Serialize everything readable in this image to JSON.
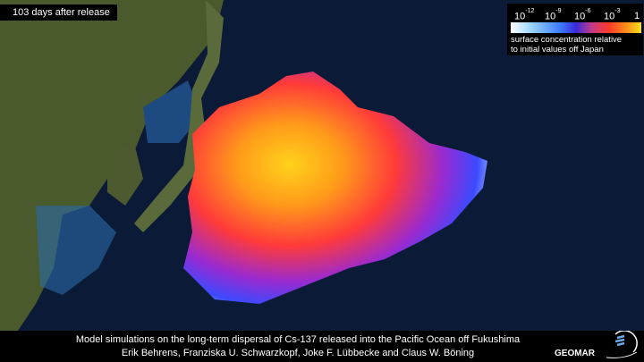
{
  "overlay": {
    "days_label": "103 days after release"
  },
  "legend": {
    "ticks": [
      {
        "base": "10",
        "exp": "-12"
      },
      {
        "base": "10",
        "exp": "-9"
      },
      {
        "base": "10",
        "exp": "-6"
      },
      {
        "base": "10",
        "exp": "-3"
      },
      {
        "base": "1",
        "exp": ""
      }
    ],
    "label_line1": "surface concentration relative",
    "label_line2": "to initial values off Japan",
    "colors": [
      "#ffffff",
      "#9fd8ff",
      "#3b7bff",
      "#3b2ad8",
      "#c23a8a",
      "#ff3a2a",
      "#ff8a1a",
      "#ffe21a"
    ]
  },
  "caption": {
    "line1": "Model simulations on the long-term dispersal of Cs-137 released into the Pacific Ocean off Fukushima",
    "line2": "Erik Behrens, Franziska U. Schwarzkopf, Joke F. Lübbecke and Claus W. Böning"
  },
  "logo": {
    "text": "GEOMAR"
  }
}
